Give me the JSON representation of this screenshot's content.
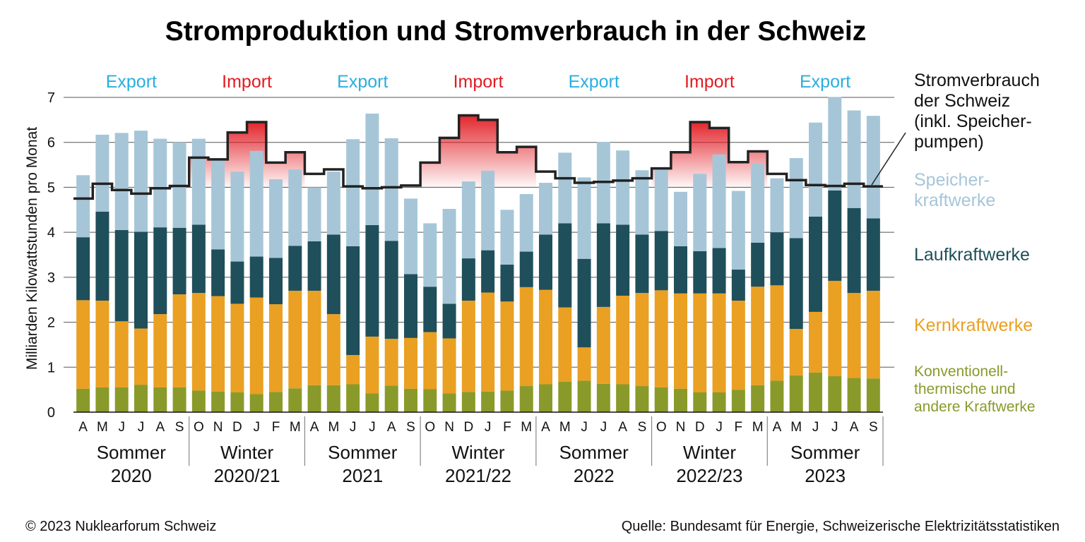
{
  "chart_data": {
    "type": "bar",
    "stacked": true,
    "title": "Stromproduktion und Stromverbrauch in der Schweiz",
    "ylabel": "Milliarden Kilowattstunden pro Monat",
    "xlabel": "",
    "ylim": [
      0,
      7
    ],
    "yticks": [
      "0",
      "1",
      "2",
      "3",
      "4",
      "5",
      "6",
      "7"
    ],
    "grid": true,
    "months": [
      "A",
      "M",
      "J",
      "J",
      "A",
      "S",
      "O",
      "N",
      "D",
      "J",
      "F",
      "M",
      "A",
      "M",
      "J",
      "J",
      "A",
      "S",
      "O",
      "N",
      "D",
      "J",
      "F",
      "M",
      "A",
      "M",
      "J",
      "J",
      "A",
      "S",
      "O",
      "N",
      "D",
      "J",
      "F",
      "M",
      "A",
      "M",
      "J",
      "J",
      "A",
      "S"
    ],
    "periods": [
      {
        "line1": "Sommer",
        "line2": "2020",
        "start": 0,
        "count": 6,
        "balance": "Export"
      },
      {
        "line1": "Winter",
        "line2": "2020/21",
        "start": 6,
        "count": 6,
        "balance": "Import"
      },
      {
        "line1": "Sommer",
        "line2": "2021",
        "start": 12,
        "count": 6,
        "balance": "Export"
      },
      {
        "line1": "Winter",
        "line2": "2021/22",
        "start": 18,
        "count": 6,
        "balance": "Import"
      },
      {
        "line1": "Sommer",
        "line2": "2022",
        "start": 24,
        "count": 6,
        "balance": "Export"
      },
      {
        "line1": "Winter",
        "line2": "2022/23",
        "start": 30,
        "count": 6,
        "balance": "Import"
      },
      {
        "line1": "Sommer",
        "line2": "2023",
        "start": 36,
        "count": 6,
        "balance": "Export"
      }
    ],
    "series": [
      {
        "name": "Konventionell-thermische und andere Kraftwerke",
        "color": "#8a9a2a",
        "values": [
          0.52,
          0.55,
          0.55,
          0.61,
          0.55,
          0.55,
          0.48,
          0.46,
          0.44,
          0.4,
          0.45,
          0.53,
          0.6,
          0.6,
          0.62,
          0.42,
          0.59,
          0.52,
          0.51,
          0.42,
          0.45,
          0.46,
          0.48,
          0.58,
          0.62,
          0.68,
          0.7,
          0.63,
          0.62,
          0.58,
          0.55,
          0.52,
          0.44,
          0.44,
          0.5,
          0.6,
          0.7,
          0.82,
          0.88,
          0.8,
          0.76,
          0.75
        ]
      },
      {
        "name": "Kernkraftwerke",
        "color": "#eaa022",
        "values": [
          1.97,
          1.93,
          1.47,
          1.25,
          1.63,
          2.07,
          2.17,
          2.12,
          1.97,
          2.15,
          1.95,
          2.17,
          2.1,
          1.58,
          0.65,
          1.26,
          1.04,
          1.13,
          1.27,
          1.22,
          2.03,
          2.2,
          1.98,
          2.2,
          2.1,
          1.65,
          0.74,
          1.71,
          1.97,
          2.07,
          2.16,
          2.12,
          2.2,
          2.2,
          1.98,
          2.19,
          2.12,
          1.03,
          1.35,
          2.12,
          1.89,
          1.95
        ]
      },
      {
        "name": "Laufkraftwerke",
        "color": "#1f4f5a",
        "values": [
          1.4,
          1.98,
          2.03,
          2.15,
          1.93,
          1.48,
          1.52,
          1.04,
          0.94,
          0.91,
          1.03,
          1.0,
          1.1,
          1.77,
          2.42,
          2.48,
          2.18,
          1.42,
          1.01,
          0.77,
          0.94,
          0.94,
          0.82,
          0.79,
          1.23,
          1.87,
          1.97,
          1.86,
          1.58,
          1.3,
          1.32,
          1.05,
          0.94,
          1.01,
          0.69,
          0.98,
          1.18,
          2.02,
          2.12,
          2.01,
          1.89,
          1.61
        ]
      },
      {
        "name": "Speicherkraftwerke",
        "color": "#a6c6d8",
        "values": [
          1.38,
          1.71,
          2.16,
          2.25,
          1.97,
          1.9,
          1.91,
          2.03,
          2.0,
          2.35,
          1.75,
          1.7,
          1.2,
          1.4,
          2.38,
          2.48,
          2.28,
          1.68,
          1.41,
          2.11,
          1.71,
          1.77,
          1.22,
          1.28,
          1.15,
          1.57,
          1.81,
          1.81,
          1.65,
          1.43,
          1.37,
          1.21,
          1.72,
          2.08,
          1.75,
          1.77,
          1.2,
          1.78,
          2.09,
          2.08,
          2.17,
          2.28
        ]
      }
    ],
    "consumption": {
      "name": "Stromverbrauch der Schweiz (inkl. Speicherpumpen)",
      "color": "#222222",
      "values": [
        4.75,
        5.08,
        4.94,
        4.86,
        4.98,
        5.03,
        5.66,
        5.62,
        6.22,
        6.45,
        5.55,
        5.78,
        5.3,
        5.4,
        5.02,
        4.98,
        5.0,
        5.04,
        5.55,
        6.1,
        6.6,
        6.5,
        5.78,
        5.9,
        5.35,
        5.2,
        5.1,
        5.12,
        5.15,
        5.2,
        5.42,
        5.78,
        6.45,
        6.32,
        5.56,
        5.8,
        5.3,
        5.16,
        5.05,
        5.03,
        5.08,
        5.02
      ]
    },
    "legend_placement": "right"
  },
  "legend": {
    "consumption": [
      "Stromverbrauch",
      "der Schweiz",
      "(inkl. Speicher-",
      "pumpen)"
    ],
    "storage": [
      "Speicher-",
      "kraftwerke"
    ],
    "runofriver": [
      "Laufkraftwerke"
    ],
    "nuclear": [
      "Kernkraftwerke"
    ],
    "conventional": [
      "Konventionell-",
      "thermische und",
      "andere Kraftwerke"
    ]
  },
  "colors": {
    "export": "#29aee0",
    "import": "#e11b22",
    "storage_text": "#a6c6d8",
    "runofriver_text": "#1f4f5a",
    "nuclear_text": "#eaa022",
    "conventional_text": "#8a9a2a",
    "import_fill": "#e11b22"
  },
  "footer": {
    "copyright": "© 2023 Nuklearforum Schweiz",
    "source": "Quelle: Bundesamt für Energie, Schweizerische Elektrizitätsstatistiken"
  }
}
